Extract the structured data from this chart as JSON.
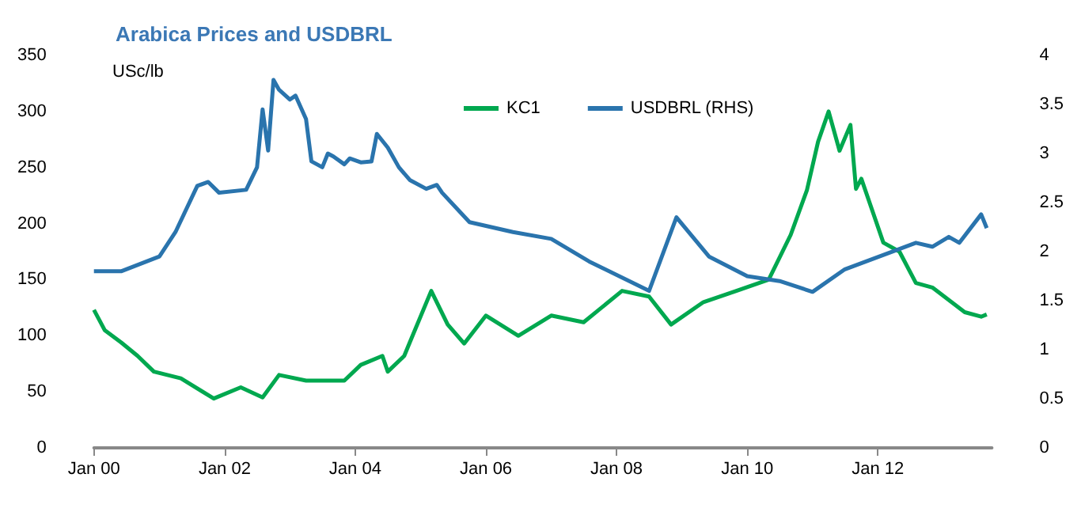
{
  "chart_data": {
    "type": "line",
    "title": "Arabica Prices and USDBRL",
    "ylabel": "USc/lb",
    "xlim": [
      "2000-01-01",
      "2013-09-30"
    ],
    "xticks": [
      {
        "value": "2000-01",
        "label": "Jan 00"
      },
      {
        "value": "2002-01",
        "label": "Jan 02"
      },
      {
        "value": "2004-01",
        "label": "Jan 04"
      },
      {
        "value": "2006-01",
        "label": "Jan 06"
      },
      {
        "value": "2008-01",
        "label": "Jan 08"
      },
      {
        "value": "2010-01",
        "label": "Jan 10"
      },
      {
        "value": "2012-01",
        "label": "Jan 12"
      }
    ],
    "ylim": [
      0,
      350
    ],
    "yticks": [
      0,
      50,
      100,
      150,
      200,
      250,
      300,
      350
    ],
    "y2lim": [
      0,
      4
    ],
    "y2ticks": [
      0,
      0.5,
      1,
      1.5,
      2,
      2.5,
      3,
      3.5,
      4
    ],
    "legend": "top",
    "grid": false,
    "marker": "none",
    "line_style": "solid",
    "series": [
      {
        "name": "KC1",
        "color": "#00a84f",
        "x": [
          "2000-01",
          "2000-03",
          "2000-06",
          "2000-09",
          "2000-12",
          "2001-05",
          "2001-11",
          "2002-04",
          "2002-08",
          "2002-11",
          "2003-04",
          "2003-11",
          "2004-02",
          "2004-06",
          "2004-07",
          "2004-10",
          "2004-11",
          "2005-03",
          "2005-06",
          "2005-09",
          "2006-01",
          "2006-07",
          "2007-01",
          "2007-07",
          "2008-02",
          "2008-07",
          "2008-11",
          "2009-05",
          "2009-11",
          "2010-05",
          "2010-09",
          "2010-12",
          "2011-02",
          "2011-04",
          "2011-06",
          "2011-08",
          "2011-09",
          "2011-10",
          "2012-02",
          "2012-05",
          "2012-08",
          "2012-11",
          "2013-05",
          "2013-08",
          "2013-09"
        ],
        "values": [
          123,
          105,
          94,
          82,
          68,
          62,
          44,
          54,
          45,
          65,
          60,
          60,
          74,
          82,
          68,
          82,
          94,
          140,
          110,
          93,
          118,
          100,
          118,
          112,
          140,
          135,
          110,
          130,
          140,
          150,
          190,
          230,
          273,
          300,
          265,
          288,
          231,
          240,
          183,
          175,
          147,
          143,
          121,
          117,
          119
        ]
      },
      {
        "name": "USDBRL (RHS)",
        "color": "#2a74ad",
        "axis": "y2",
        "x": [
          "2000-01",
          "2000-06",
          "2001-01",
          "2001-04",
          "2001-08",
          "2001-10",
          "2001-12",
          "2002-05",
          "2002-07",
          "2002-08",
          "2002-09",
          "2002-10",
          "2002-11",
          "2003-01",
          "2003-02",
          "2003-04",
          "2003-05",
          "2003-07",
          "2003-08",
          "2003-09",
          "2003-11",
          "2003-12",
          "2004-02",
          "2004-04",
          "2004-05",
          "2004-07",
          "2004-09",
          "2004-11",
          "2005-02",
          "2005-04",
          "2005-05",
          "2005-10",
          "2006-06",
          "2007-01",
          "2007-08",
          "2008-07",
          "2008-12",
          "2009-06",
          "2010-01",
          "2010-07",
          "2011-01",
          "2011-07",
          "2012-08",
          "2012-11",
          "2013-02",
          "2013-04",
          "2013-08",
          "2013-09"
        ],
        "values": [
          1.8,
          1.8,
          1.95,
          2.2,
          2.67,
          2.71,
          2.6,
          2.63,
          2.86,
          3.45,
          3.03,
          3.75,
          3.65,
          3.55,
          3.59,
          3.35,
          2.92,
          2.86,
          3.0,
          2.97,
          2.89,
          2.95,
          2.91,
          2.92,
          3.2,
          3.06,
          2.86,
          2.73,
          2.64,
          2.68,
          2.6,
          2.3,
          2.2,
          2.13,
          1.9,
          1.6,
          2.35,
          1.95,
          1.75,
          1.7,
          1.59,
          1.82,
          2.09,
          2.05,
          2.15,
          2.09,
          2.38,
          2.24
        ]
      }
    ]
  }
}
